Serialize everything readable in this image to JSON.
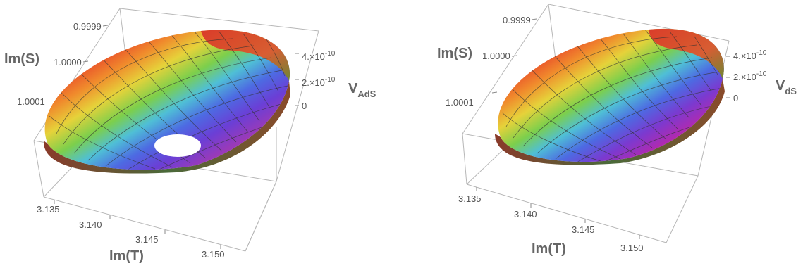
{
  "chart_data": [
    {
      "type": "surface3d",
      "title": "",
      "xlabel": "Im(T)",
      "ylabel": "Im(S)",
      "zlabel": "V",
      "zlabel_subscript": "AdS",
      "x_ticks": [
        "3.135",
        "3.140",
        "3.145",
        "3.150"
      ],
      "y_ticks": [
        "0.9999",
        "1.0000",
        "1.0001"
      ],
      "z_ticks": [
        "4.×10",
        "2.×10",
        "0"
      ],
      "z_tick_exponent": "-10",
      "xlim": [
        3.134,
        3.152
      ],
      "ylim": [
        0.99985,
        1.00015
      ],
      "zlim": [
        0,
        5e-10
      ],
      "colormap": "rainbow",
      "surface": "bowl with a hole near the minimum"
    },
    {
      "type": "surface3d",
      "title": "",
      "xlabel": "Im(T)",
      "ylabel": "Im(S)",
      "zlabel": "V",
      "zlabel_subscript": "dS",
      "x_ticks": [
        "3.135",
        "3.140",
        "3.145",
        "3.150"
      ],
      "y_ticks": [
        "0.9999",
        "1.0000",
        "1.0001"
      ],
      "z_ticks": [
        "4.×10",
        "2.×10",
        "0"
      ],
      "z_tick_exponent": "-10",
      "xlim": [
        3.134,
        3.152
      ],
      "ylim": [
        0.99985,
        1.00015
      ],
      "zlim": [
        0,
        5e-10
      ],
      "colormap": "rainbow",
      "surface": "closed bowl"
    }
  ]
}
